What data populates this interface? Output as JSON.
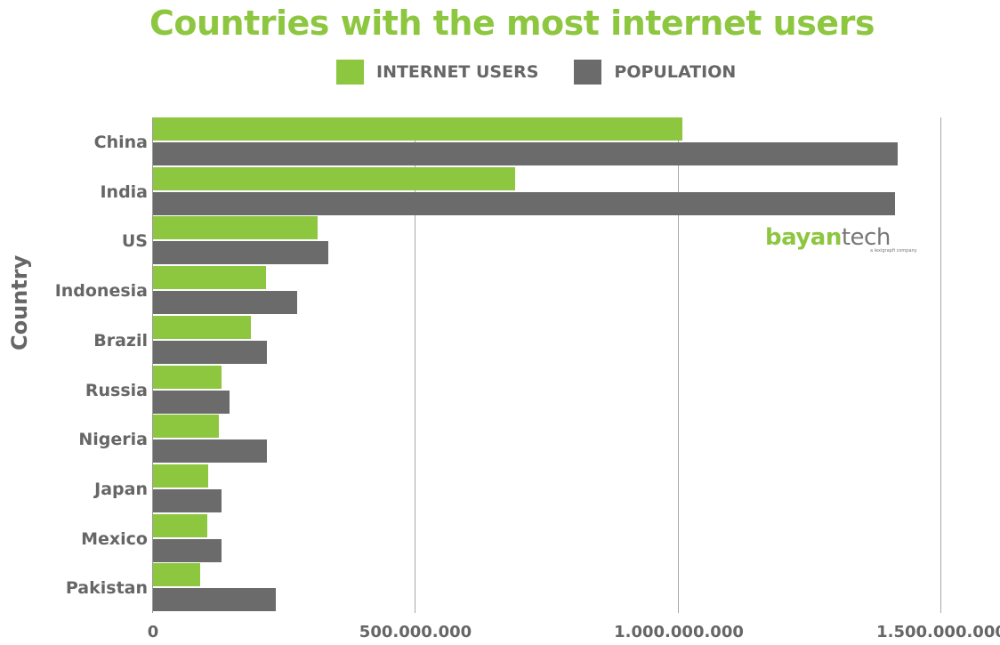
{
  "title": "Countries with the most internet users",
  "legend": [
    {
      "label": "INTERNET USERS",
      "color": "#8dc63f"
    },
    {
      "label": "POPULATION",
      "color": "#6b6b6b"
    }
  ],
  "logo": {
    "bold": "bayan",
    "light": "tech",
    "tagline": "a lexigrapfi company"
  },
  "axis": {
    "ylabel": "Country",
    "xticks": [
      "0",
      "500.000.000",
      "1.000.000.000",
      "1.500.000.000"
    ]
  },
  "colors": {
    "internet_users": "#8dc63f",
    "population": "#6b6b6b",
    "text": "#666666"
  },
  "chart_data": {
    "type": "bar",
    "orientation": "horizontal",
    "title": "Countries with the most internet users",
    "xlabel": "",
    "ylabel": "Country",
    "xlim": [
      0,
      1500000000
    ],
    "xticks": [
      0,
      500000000,
      1000000000,
      1500000000
    ],
    "xtick_labels": [
      "0",
      "500.000.000",
      "1.000.000.000",
      "1.500.000.000"
    ],
    "grid": "vertical",
    "legend_position": "top",
    "categories": [
      "China",
      "India",
      "US",
      "Indonesia",
      "Brazil",
      "Russia",
      "Nigeria",
      "Japan",
      "Mexico",
      "Pakistan"
    ],
    "series": [
      {
        "name": "INTERNET USERS",
        "color": "#8dc63f",
        "values": [
          1007000000,
          689000000,
          313000000,
          215000000,
          186000000,
          130000000,
          125000000,
          105000000,
          103000000,
          90000000
        ]
      },
      {
        "name": "POPULATION",
        "color": "#6b6b6b",
        "values": [
          1417000000,
          1412000000,
          333000000,
          274000000,
          217000000,
          146000000,
          217000000,
          130000000,
          130000000,
          234000000
        ]
      }
    ]
  }
}
